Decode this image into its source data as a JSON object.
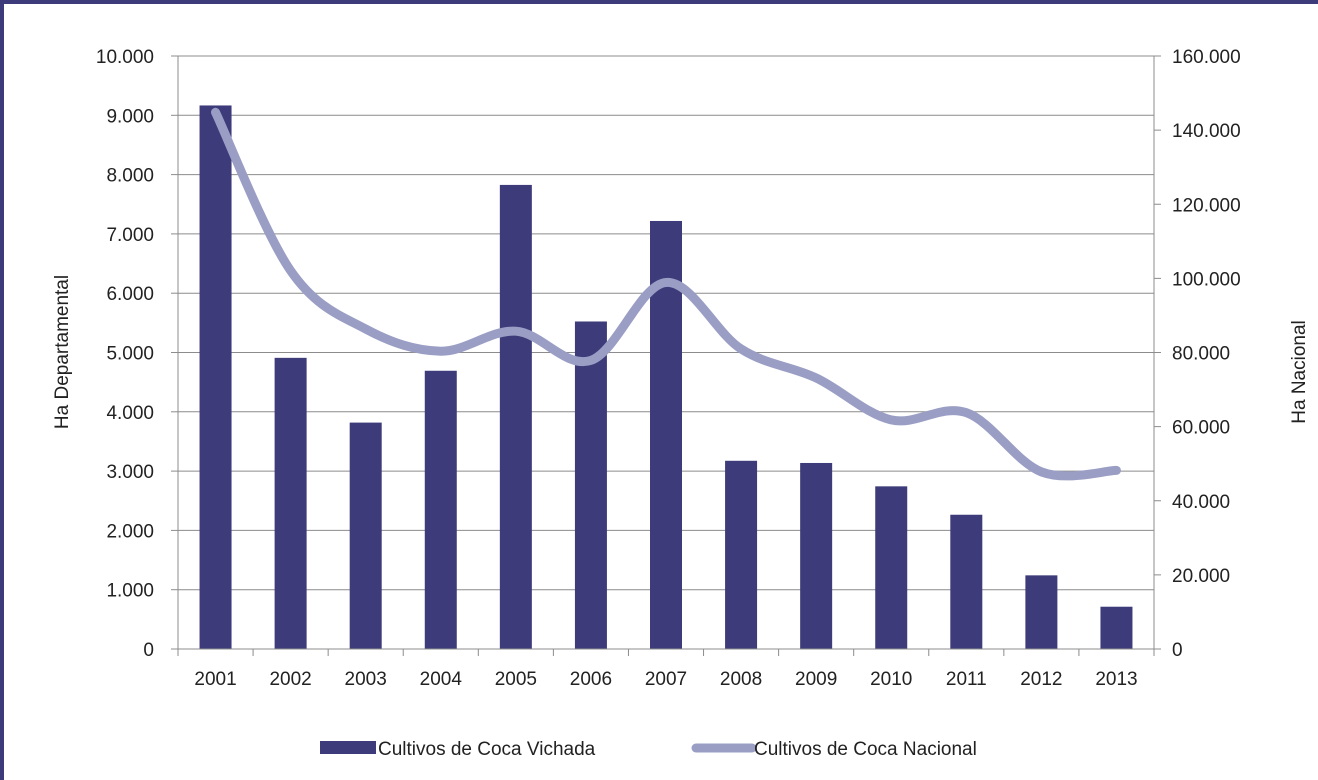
{
  "chart_data": {
    "type": "bar+line",
    "categories": [
      "2001",
      "2002",
      "2003",
      "2004",
      "2005",
      "2006",
      "2007",
      "2008",
      "2009",
      "2010",
      "2011",
      "2012",
      "2013"
    ],
    "series": [
      {
        "name": "Cultivos de Coca Vichada",
        "type": "bar",
        "axis": "left",
        "color": "#3d3b7a",
        "values": [
          9166,
          4910,
          3818,
          4692,
          7826,
          5523,
          7218,
          3174,
          3137,
          2743,
          2264,
          1242,
          713
        ]
      },
      {
        "name": "Cultivos de Coca Nacional",
        "type": "line",
        "axis": "right",
        "color": "#9a9ec4",
        "values": [
          144807,
          102071,
          86340,
          80350,
          85750,
          77870,
          98899,
          80953,
          73139,
          61812,
          63762,
          47790,
          48189
        ]
      }
    ],
    "y_left": {
      "label": "Ha Departamental",
      "min": 0,
      "max": 10000,
      "step": 1000,
      "tick_labels": [
        "0",
        "1.000",
        "2.000",
        "3.000",
        "4.000",
        "5.000",
        "6.000",
        "7.000",
        "8.000",
        "9.000",
        "10.000"
      ]
    },
    "y_right": {
      "label": "Ha Nacional",
      "min": 0,
      "max": 160000,
      "step": 20000,
      "tick_labels": [
        "0",
        "20.000",
        "40.000",
        "60.000",
        "80.000",
        "100.000",
        "120.000",
        "140.000",
        "160.000"
      ]
    },
    "grid": true,
    "legend_position": "bottom"
  }
}
